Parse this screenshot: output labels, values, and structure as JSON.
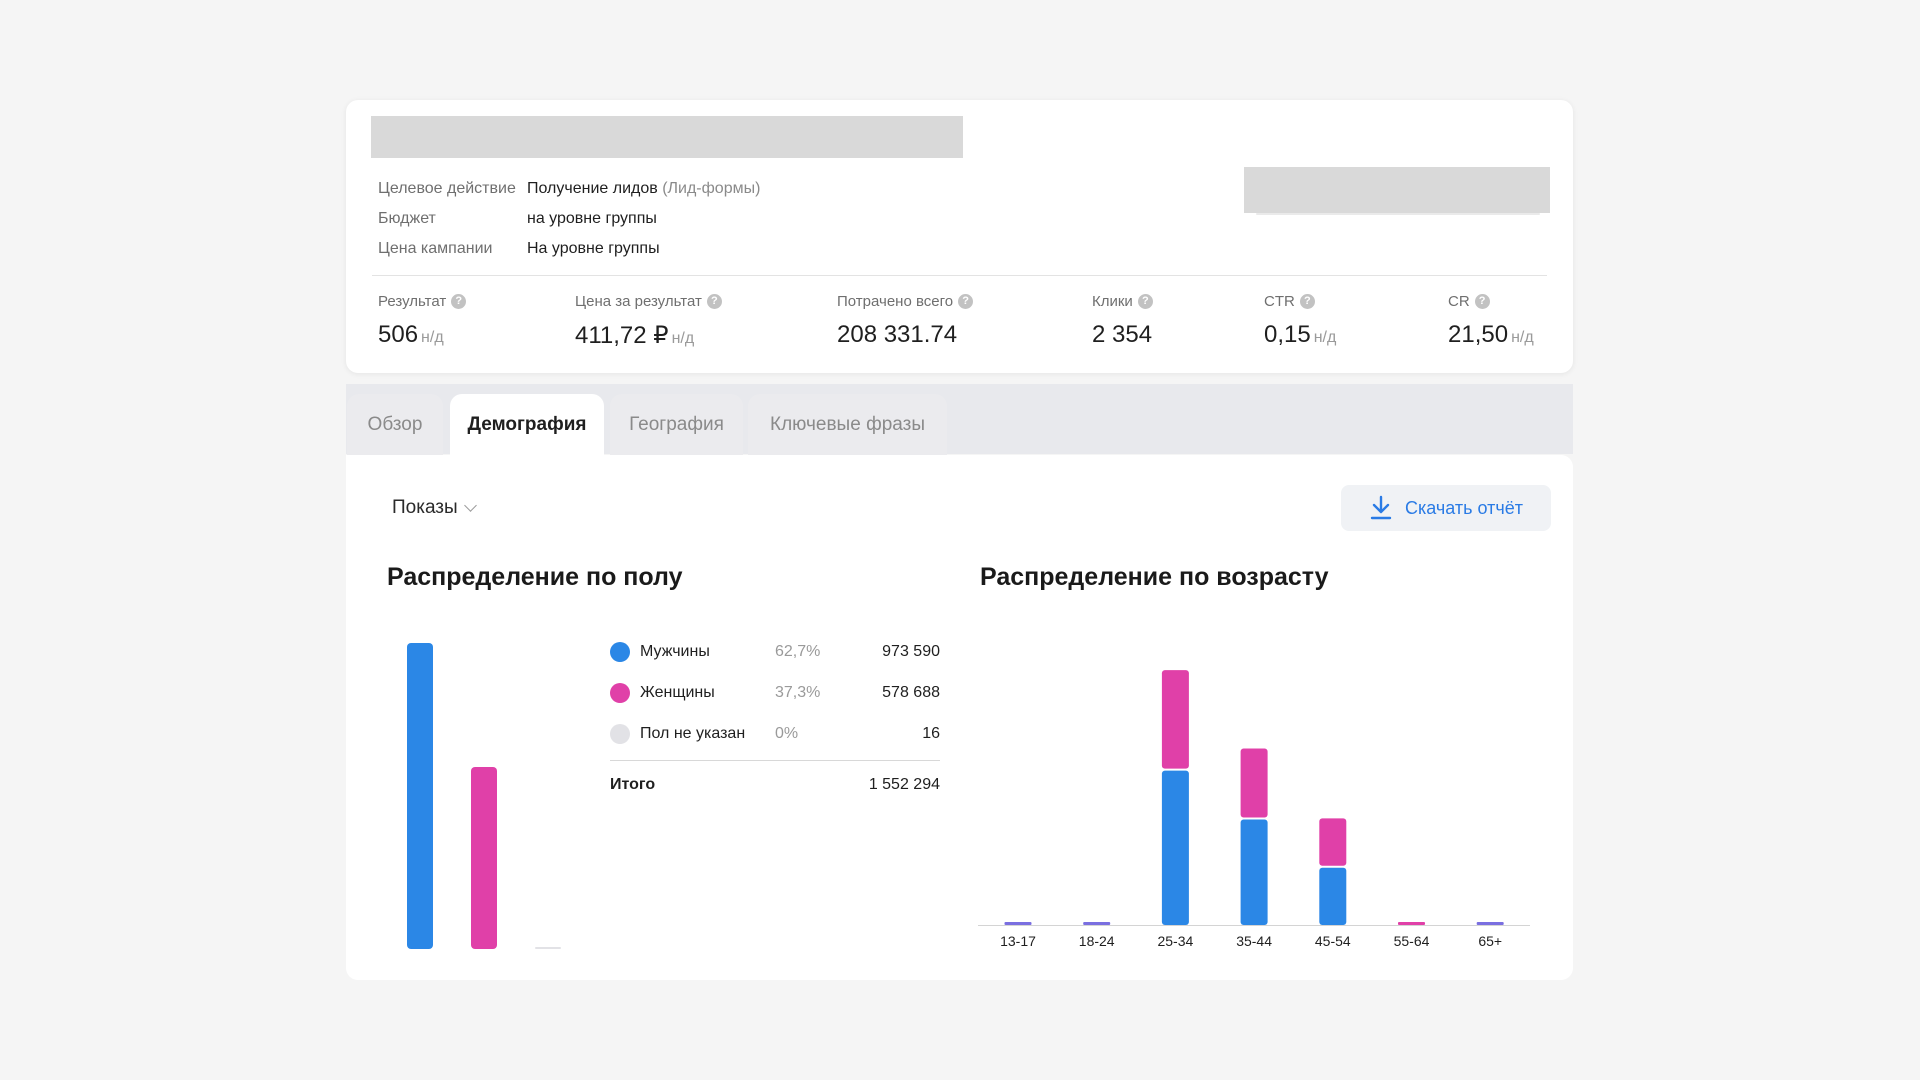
{
  "campaign": {
    "meta": [
      {
        "label": "Целевое действие",
        "value": "Получение лидов",
        "extra": "(Лид-формы)"
      },
      {
        "label": "Бюджет",
        "value": "на уровне группы",
        "extra": ""
      },
      {
        "label": "Цена кампании",
        "value": "На уровне группы",
        "extra": ""
      }
    ],
    "kpis": [
      {
        "label": "Результат",
        "value": "506",
        "suffix": "н/д"
      },
      {
        "label": "Цена за результат",
        "value": "411,72 ₽",
        "suffix": "н/д"
      },
      {
        "label": "Потрачено всего",
        "value": "208 331.74",
        "suffix": ""
      },
      {
        "label": "Клики",
        "value": "2 354",
        "suffix": ""
      },
      {
        "label": "CTR",
        "value": "0,15",
        "suffix": "н/д"
      },
      {
        "label": "CR",
        "value": "21,50",
        "suffix": "н/д"
      }
    ],
    "help_glyph": "?"
  },
  "tabs": [
    {
      "label": "Обзор",
      "active": false
    },
    {
      "label": "Демография",
      "active": true
    },
    {
      "label": "География",
      "active": false
    },
    {
      "label": "Ключевые фразы",
      "active": false
    }
  ],
  "toolbar": {
    "metric_select": "Показы",
    "download_label": "Скачать отчёт"
  },
  "gender": {
    "title": "Распределение по полу",
    "rows": [
      {
        "name": "Мужчины",
        "pct": "62,7%",
        "value": "973 590",
        "color": "#2b87e6"
      },
      {
        "name": "Женщины",
        "pct": "37,3%",
        "value": "578 688",
        "color": "#e040a8"
      },
      {
        "name": "Пол не указан",
        "pct": "0%",
        "value": "16",
        "color": "#e2e2e6"
      }
    ],
    "total_label": "Итого",
    "total_value": "1 552 294"
  },
  "age": {
    "title": "Распределение по возрасту"
  },
  "colors": {
    "male": "#2b87e6",
    "female": "#e040a8",
    "unknown": "#e2e2e6",
    "accent": "#2a7be5",
    "tiny_bar": "#7a6fe0"
  },
  "chart_data": [
    {
      "type": "bar",
      "title": "Распределение по полу",
      "categories": [
        "Мужчины",
        "Женщины",
        "Пол не указан"
      ],
      "values": [
        973590,
        578688,
        16
      ]
    },
    {
      "type": "bar",
      "stacked": true,
      "title": "Распределение по возрасту",
      "categories": [
        "13-17",
        "18-24",
        "25-34",
        "35-44",
        "45-54",
        "55-64",
        "65+"
      ],
      "series": [
        {
          "name": "Мужчины",
          "values": [
            800,
            1000,
            426000,
            291000,
            158000,
            5000,
            1500
          ]
        },
        {
          "name": "Женщины",
          "values": [
            600,
            900,
            277000,
            196000,
            136000,
            8000,
            1200
          ]
        }
      ],
      "ylim": [
        0,
        800000
      ],
      "grid": false
    }
  ]
}
